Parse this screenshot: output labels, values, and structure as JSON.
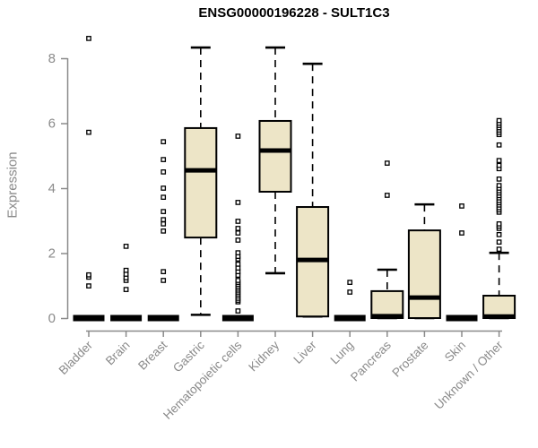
{
  "window": {
    "background": "#ffffff"
  },
  "title": "ENSG00000196228 - SULT1C3",
  "chart_data": {
    "type": "boxplot",
    "title": "ENSG00000196228 - SULT1C3",
    "xlabel": "",
    "ylabel": "Expression",
    "ylim": [
      0,
      8.7
    ],
    "yticks": [
      0,
      2,
      4,
      6,
      8
    ],
    "grid": false,
    "legend": "none",
    "box_fill": "#EDE5C7",
    "box_border": "#000000",
    "axis_color": "#8a8a8a",
    "categories": [
      "Bladder",
      "Brain",
      "Breast",
      "Gastric",
      "Hematopoietic cells",
      "Kidney",
      "Liver",
      "Lung",
      "Pancreas",
      "Prostate",
      "Skin",
      "Unknown / Other"
    ],
    "series": [
      {
        "name": "Bladder",
        "whisker_low": 0,
        "q1": 0,
        "median": 0,
        "q3": 0,
        "whisker_high": 0,
        "outliers": [
          0.99,
          1.26,
          1.33,
          5.72,
          8.61
        ]
      },
      {
        "name": "Brain",
        "whisker_low": 0,
        "q1": 0,
        "median": 0,
        "q3": 0,
        "whisker_high": 0,
        "outliers": [
          0.88,
          1.16,
          1.24,
          1.35,
          1.47,
          2.21
        ]
      },
      {
        "name": "Breast",
        "whisker_low": 0,
        "q1": 0,
        "median": 0,
        "q3": 0,
        "whisker_high": 0,
        "outliers": [
          1.16,
          1.43,
          2.68,
          2.9,
          3.03,
          3.28,
          3.72,
          4.0,
          4.5,
          4.88,
          5.43
        ]
      },
      {
        "name": "Gastric",
        "whisker_low": 0.1,
        "q1": 2.48,
        "median": 4.55,
        "q3": 5.85,
        "whisker_high": 8.33,
        "outliers": []
      },
      {
        "name": "Hematopoietic cells",
        "whisker_low": 0,
        "q1": 0,
        "median": 0,
        "q3": 0,
        "whisker_high": 0,
        "outliers": [
          0.22,
          0.5,
          0.55,
          0.61,
          0.68,
          0.74,
          0.8,
          0.86,
          0.92,
          0.98,
          1.04,
          1.1,
          1.16,
          1.32,
          1.43,
          1.54,
          1.66,
          1.82,
          1.9,
          2.01,
          2.4,
          2.62,
          2.76,
          2.98,
          3.56,
          5.6
        ]
      },
      {
        "name": "Kidney",
        "whisker_low": 1.38,
        "q1": 3.89,
        "median": 5.16,
        "q3": 6.07,
        "whisker_high": 8.33,
        "outliers": []
      },
      {
        "name": "Liver",
        "whisker_low": 0.05,
        "q1": 0.05,
        "median": 1.79,
        "q3": 3.42,
        "whisker_high": 7.83,
        "outliers": []
      },
      {
        "name": "Lung",
        "whisker_low": 0,
        "q1": 0,
        "median": 0,
        "q3": 0,
        "whisker_high": 0,
        "outliers": [
          0.8,
          1.1
        ]
      },
      {
        "name": "Pancreas",
        "whisker_low": 0,
        "q1": 0,
        "median": 0.06,
        "q3": 0.83,
        "whisker_high": 1.49,
        "outliers": [
          3.78,
          4.77
        ]
      },
      {
        "name": "Prostate",
        "whisker_low": 0,
        "q1": 0,
        "median": 0.63,
        "q3": 2.7,
        "whisker_high": 3.5,
        "outliers": []
      },
      {
        "name": "Skin",
        "whisker_low": 0,
        "q1": 0,
        "median": 0,
        "q3": 0,
        "whisker_high": 0,
        "outliers": [
          2.62,
          3.45
        ]
      },
      {
        "name": "Unknown / Other",
        "whisker_low": 0,
        "q1": 0,
        "median": 0.05,
        "q3": 0.69,
        "whisker_high": 2.01,
        "outliers": [
          2.12,
          2.34,
          2.57,
          2.76,
          2.83,
          2.9,
          3.26,
          3.33,
          3.4,
          3.48,
          3.55,
          3.62,
          3.7,
          3.77,
          3.85,
          3.92,
          4.0,
          4.08,
          4.28,
          4.6,
          4.7,
          4.85,
          5.33,
          5.65,
          5.72,
          5.79,
          5.86,
          5.93,
          6.0,
          6.08
        ]
      }
    ]
  }
}
